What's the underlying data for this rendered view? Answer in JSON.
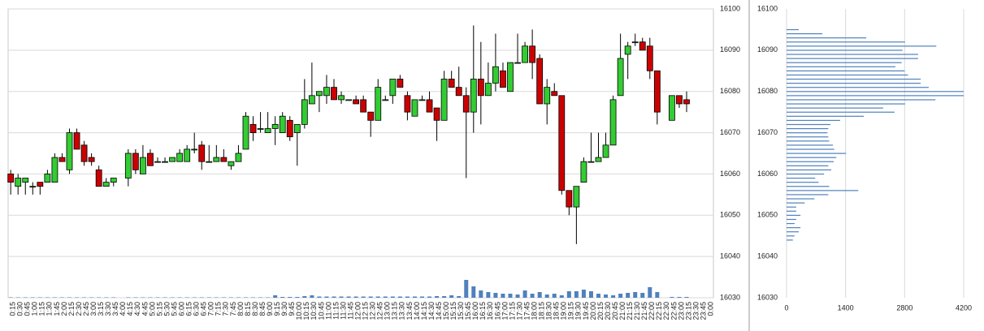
{
  "chart_data": [
    {
      "type": "candlestick",
      "categories": [
        "0:15",
        "0:30",
        "0:45",
        "1:00",
        "1:15",
        "1:30",
        "1:45",
        "2:00",
        "2:15",
        "2:30",
        "2:45",
        "3:00",
        "3:15",
        "3:30",
        "3:45",
        "4:00",
        "4:15",
        "4:30",
        "4:45",
        "5:00",
        "5:15",
        "5:30",
        "5:45",
        "6:00",
        "6:15",
        "6:30",
        "6:45",
        "7:00",
        "7:15",
        "7:30",
        "7:45",
        "8:00",
        "8:15",
        "8:30",
        "8:45",
        "9:00",
        "9:15",
        "9:30",
        "9:45",
        "10:00",
        "10:15",
        "10:30",
        "10:45",
        "11:00",
        "11:15",
        "11:30",
        "11:45",
        "12:00",
        "12:15",
        "12:30",
        "12:45",
        "13:00",
        "13:15",
        "13:30",
        "13:45",
        "14:00",
        "14:15",
        "14:30",
        "14:45",
        "15:00",
        "15:15",
        "15:30",
        "15:45",
        "16:00",
        "16:15",
        "16:30",
        "16:45",
        "17:00",
        "17:15",
        "17:30",
        "17:45",
        "18:00",
        "18:15",
        "18:30",
        "18:45",
        "19:00",
        "19:15",
        "19:30",
        "19:45",
        "20:00",
        "20:15",
        "20:30",
        "20:45",
        "21:00",
        "21:15",
        "21:30",
        "21:45",
        "22:00",
        "22:15",
        "22:30",
        "22:45",
        "23:00",
        "23:15",
        "23:30",
        "23:45",
        "0:00"
      ],
      "open": [
        16060,
        16057,
        16058,
        16057,
        16058,
        16058,
        16058,
        16064,
        16061,
        16070,
        16067,
        16064,
        16061,
        16057,
        16058,
        null,
        16059,
        16065,
        16060,
        16065,
        16063,
        16063,
        16063,
        16063,
        16063,
        16066,
        16067,
        16063,
        16063,
        16064,
        16062,
        16063,
        16066,
        16072,
        16071,
        16070,
        16071,
        16070,
        16073,
        16070,
        16072,
        16077,
        16079,
        16079,
        16081,
        16078,
        16078,
        16078,
        16078,
        16075,
        16073,
        16078,
        16079,
        16083,
        16079,
        16074,
        16078,
        16078,
        16076,
        16073,
        16083,
        16081,
        16079,
        16075,
        16083,
        16079,
        16082,
        16085,
        16080,
        16087,
        16087,
        16091,
        16088,
        16077,
        16080,
        16079,
        16056,
        16052,
        16058,
        16063,
        16063,
        16064,
        16067,
        16079,
        16089,
        16092,
        16092,
        16091,
        16085,
        null,
        16073,
        16079,
        16078,
        null,
        null,
        null
      ],
      "high": [
        16061,
        16060,
        16059,
        16058,
        16058,
        16061,
        16065,
        16065,
        16071,
        16071,
        16068,
        16065,
        16062,
        16059,
        16059,
        null,
        16066,
        16066,
        16067,
        16066,
        16064,
        16064,
        16064,
        16066,
        16067,
        16070,
        16068,
        16067,
        16067,
        16066,
        16063,
        16067,
        16075,
        16074,
        16075,
        16075,
        16074,
        16075,
        16074,
        16072,
        16083,
        16087,
        16080,
        16084,
        16083,
        16080,
        16078,
        16079,
        16079,
        16075,
        16083,
        16079,
        16083,
        16084,
        16080,
        16078,
        16079,
        16080,
        16076,
        16085,
        16085,
        16086,
        16081,
        16096,
        16092,
        16087,
        16094,
        16087,
        16087,
        16094,
        16092,
        16095,
        16089,
        16083,
        16082,
        16079,
        16056,
        16057,
        16064,
        16070,
        16070,
        16070,
        16079,
        16094,
        16092,
        16094,
        16093,
        16093,
        16085,
        null,
        16079,
        16079,
        16080,
        null,
        null,
        null
      ],
      "low": [
        16055,
        16055,
        16055,
        16055,
        16055,
        16058,
        16058,
        16063,
        16060,
        16066,
        16062,
        16062,
        16057,
        16057,
        16057,
        null,
        16057,
        16060,
        16060,
        16062,
        16063,
        16063,
        16063,
        16063,
        16063,
        16065,
        16061,
        16063,
        16063,
        16063,
        16061,
        16063,
        16066,
        16068,
        16070,
        16070,
        16067,
        16070,
        16068,
        16062,
        16071,
        16077,
        16075,
        16077,
        16078,
        16077,
        16078,
        16077,
        16075,
        16069,
        16073,
        16078,
        16077,
        16081,
        16073,
        16074,
        16078,
        16075,
        16068,
        16073,
        16081,
        16079,
        16059,
        16070,
        16072,
        16079,
        16080,
        16081,
        16080,
        16087,
        16087,
        16083,
        16077,
        16072,
        16079,
        16055,
        16050,
        16043,
        16058,
        16063,
        16063,
        16064,
        16067,
        16079,
        16083,
        16091,
        16090,
        16083,
        16072,
        null,
        16073,
        16076,
        16075,
        null,
        null,
        null
      ],
      "close": [
        16058,
        16059,
        16059,
        16057,
        16057,
        16060,
        16064,
        16063,
        16070,
        16066,
        16063,
        16063,
        16057,
        16058,
        16059,
        null,
        16065,
        16061,
        16064,
        16062,
        16063,
        16063,
        16064,
        16065,
        16066,
        16066,
        16063,
        16063,
        16064,
        16063,
        16063,
        16065,
        16074,
        16070,
        16071,
        16071,
        16072,
        16074,
        16069,
        16072,
        16078,
        16079,
        16080,
        16081,
        16078,
        16079,
        16078,
        16077,
        16075,
        16073,
        16081,
        16078,
        16083,
        16081,
        16075,
        16078,
        16078,
        16075,
        16073,
        16083,
        16081,
        16079,
        16075,
        16083,
        16079,
        16082,
        16086,
        16081,
        16087,
        16087,
        16091,
        16087,
        16077,
        16081,
        16079,
        16056,
        16052,
        16057,
        16063,
        16063,
        16064,
        16067,
        16078,
        16088,
        16091,
        16092,
        16090,
        16085,
        16075,
        null,
        16079,
        16077,
        16077,
        null,
        null,
        null
      ],
      "volume": [
        0.5,
        0.5,
        0.5,
        0.5,
        0.5,
        0.5,
        0.5,
        0.5,
        0.5,
        0.5,
        0.5,
        0.5,
        0.5,
        0.5,
        0.5,
        null,
        0.5,
        0.5,
        0.5,
        0.5,
        0.5,
        0.5,
        0.5,
        0.5,
        0.5,
        0.5,
        0.5,
        0.5,
        0.5,
        0.5,
        0.5,
        0.5,
        0.5,
        0.5,
        0.5,
        0.5,
        3,
        1,
        1,
        1,
        2,
        3,
        1.5,
        1.5,
        1.5,
        1.5,
        1.5,
        1.5,
        1.5,
        1.5,
        1.5,
        1.5,
        1.5,
        1.5,
        1.5,
        1.5,
        1.5,
        1.5,
        2,
        2,
        3,
        2,
        22,
        14,
        9,
        7,
        6,
        5,
        5,
        4,
        9,
        5,
        7,
        4,
        5,
        3,
        8,
        8,
        10,
        8,
        5,
        4,
        3,
        5,
        6,
        7,
        6,
        13,
        7,
        null,
        1,
        1,
        1,
        null,
        null,
        null
      ],
      "up_color": "#33cc33",
      "down_color": "#cc0000",
      "volume_color": "#4f81bd",
      "ylim": [
        16030,
        16100
      ],
      "yticks": [
        16030,
        16040,
        16050,
        16060,
        16070,
        16080,
        16090,
        16100
      ],
      "grid": true
    },
    {
      "type": "bar",
      "orientation": "horizontal",
      "y": [
        16095,
        16094,
        16093,
        16092,
        16091,
        16090,
        16089,
        16088,
        16087,
        16086,
        16085,
        16084,
        16083,
        16082,
        16081,
        16080,
        16079,
        16078,
        16077,
        16076,
        16075,
        16074,
        16073,
        16072,
        16071,
        16070,
        16069,
        16068,
        16067,
        16066,
        16065,
        16064,
        16063,
        16062,
        16061,
        16060,
        16059,
        16058,
        16057,
        16056,
        16055,
        16054,
        16053,
        16052,
        16051,
        16050,
        16049,
        16048,
        16047,
        16046,
        16045,
        16044
      ],
      "values": [
        290,
        850,
        1890,
        2810,
        3550,
        2750,
        3120,
        3120,
        2730,
        2580,
        2800,
        2880,
        3180,
        3180,
        3370,
        4200,
        4200,
        3530,
        2810,
        2290,
        2560,
        1830,
        1270,
        1040,
        990,
        970,
        990,
        1010,
        1100,
        1130,
        1410,
        1180,
        1120,
        990,
        1060,
        890,
        680,
        760,
        1010,
        1700,
        990,
        660,
        430,
        230,
        230,
        330,
        230,
        190,
        330,
        290,
        190,
        150
      ],
      "color": "#4f81bd",
      "xlim": [
        0,
        4200
      ],
      "xticks": [
        0,
        1400,
        2800,
        4200
      ],
      "ylim": [
        16030,
        16100
      ],
      "yticks": [
        16030,
        16040,
        16050,
        16060,
        16070,
        16080,
        16090,
        16100
      ],
      "grid": true
    }
  ]
}
